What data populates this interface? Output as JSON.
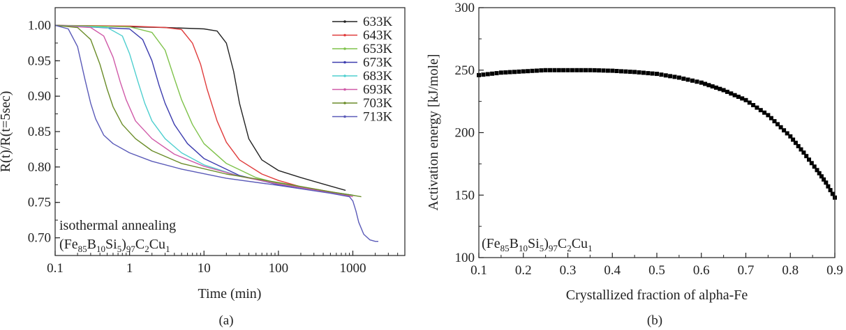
{
  "chart_data": [
    {
      "type": "line",
      "panel_caption": "(a)",
      "xlabel": "Time (min)",
      "ylabel": "R(t)/R(t=5sec)",
      "xscale": "log",
      "xlim": [
        0.1,
        5000
      ],
      "ylim": [
        0.675,
        1.025
      ],
      "xticks": [
        0.1,
        1,
        10,
        100,
        1000
      ],
      "xtick_labels": [
        "0.1",
        "1",
        "10",
        "100",
        "1000"
      ],
      "yticks": [
        0.7,
        0.75,
        0.8,
        0.85,
        0.9,
        0.95,
        1.0
      ],
      "ytick_labels": [
        "0.70",
        "0.75",
        "0.80",
        "0.85",
        "0.90",
        "0.95",
        "1.00"
      ],
      "legend_position": "top-right",
      "annotation": {
        "line1": "isothermal annealing",
        "formula": {
          "fe": "(Fe",
          "n85": "85",
          "b": "B",
          "n10": "10",
          "si": "Si",
          "n5": "5",
          "close": ")",
          "n97": "97",
          "c": "C",
          "n2": "2",
          "cu": "Cu",
          "n1": "1"
        }
      },
      "series": [
        {
          "name": "633K",
          "color": "#222222",
          "x": [
            0.1,
            0.5,
            1,
            3,
            10,
            15,
            20,
            25,
            30,
            40,
            60,
            100,
            200,
            400,
            800
          ],
          "y": [
            1.0,
            0.999,
            0.998,
            0.997,
            0.995,
            0.992,
            0.975,
            0.935,
            0.89,
            0.84,
            0.81,
            0.795,
            0.785,
            0.776,
            0.767
          ]
        },
        {
          "name": "643K",
          "color": "#e03c3c",
          "x": [
            0.1,
            1,
            3,
            5,
            7,
            9,
            11,
            15,
            20,
            30,
            60,
            100,
            200,
            500,
            900
          ],
          "y": [
            1.0,
            0.999,
            0.997,
            0.994,
            0.975,
            0.945,
            0.91,
            0.865,
            0.835,
            0.81,
            0.79,
            0.781,
            0.772,
            0.765,
            0.76
          ]
        },
        {
          "name": "653K",
          "color": "#7ec24a",
          "x": [
            0.1,
            1,
            2,
            3,
            4,
            5,
            7,
            10,
            20,
            50,
            100,
            300,
            1000
          ],
          "y": [
            1.0,
            0.998,
            0.99,
            0.965,
            0.925,
            0.895,
            0.86,
            0.833,
            0.805,
            0.785,
            0.777,
            0.768,
            0.76
          ]
        },
        {
          "name": "673K",
          "color": "#3c3cae",
          "x": [
            0.1,
            1,
            1.5,
            2,
            2.5,
            3,
            4,
            6,
            10,
            30,
            100,
            300,
            1000
          ],
          "y": [
            1.0,
            0.995,
            0.98,
            0.95,
            0.915,
            0.89,
            0.86,
            0.833,
            0.812,
            0.788,
            0.775,
            0.768,
            0.76
          ]
        },
        {
          "name": "683K",
          "color": "#4fcfcf",
          "x": [
            0.1,
            0.5,
            0.8,
            1.0,
            1.3,
            1.6,
            2,
            3,
            5,
            10,
            30,
            100,
            300,
            1000
          ],
          "y": [
            1.0,
            0.997,
            0.985,
            0.96,
            0.92,
            0.89,
            0.865,
            0.84,
            0.82,
            0.803,
            0.787,
            0.776,
            0.768,
            0.76
          ]
        },
        {
          "name": "693K",
          "color": "#d05aa8",
          "x": [
            0.1,
            0.3,
            0.45,
            0.6,
            0.75,
            0.9,
            1.2,
            2,
            4,
            10,
            30,
            100,
            300,
            1000
          ],
          "y": [
            1.0,
            0.997,
            0.985,
            0.955,
            0.92,
            0.895,
            0.865,
            0.84,
            0.818,
            0.801,
            0.787,
            0.776,
            0.768,
            0.758
          ]
        },
        {
          "name": "703K",
          "color": "#6a8c28",
          "x": [
            0.1,
            0.2,
            0.3,
            0.4,
            0.5,
            0.6,
            0.8,
            1.2,
            2,
            5,
            20,
            100,
            500,
            1000,
            1300
          ],
          "y": [
            1.0,
            0.997,
            0.98,
            0.945,
            0.91,
            0.885,
            0.86,
            0.84,
            0.823,
            0.805,
            0.79,
            0.778,
            0.765,
            0.76,
            0.758
          ]
        },
        {
          "name": "713K",
          "color": "#5a5ab8",
          "x": [
            0.1,
            0.15,
            0.2,
            0.25,
            0.3,
            0.35,
            0.45,
            0.6,
            1,
            2,
            5,
            20,
            100,
            500,
            900,
            1000,
            1100,
            1200,
            1400,
            1700,
            2000,
            2200
          ],
          "y": [
            1.0,
            0.995,
            0.97,
            0.925,
            0.89,
            0.868,
            0.845,
            0.833,
            0.82,
            0.808,
            0.797,
            0.784,
            0.774,
            0.763,
            0.758,
            0.752,
            0.738,
            0.722,
            0.705,
            0.697,
            0.695,
            0.695
          ]
        }
      ]
    },
    {
      "type": "scatter",
      "panel_caption": "(b)",
      "xlabel": "Crystallized fraction of alpha-Fe",
      "ylabel": "Activation energy [kJ/mole]",
      "xlim": [
        0.1,
        0.9
      ],
      "ylim": [
        100,
        300
      ],
      "xticks": [
        0.1,
        0.2,
        0.3,
        0.4,
        0.5,
        0.6,
        0.7,
        0.8,
        0.9
      ],
      "xtick_labels": [
        "0.1",
        "0.2",
        "0.3",
        "0.4",
        "0.5",
        "0.6",
        "0.7",
        "0.8",
        "0.9"
      ],
      "yticks": [
        100,
        150,
        200,
        250,
        300
      ],
      "ytick_labels": [
        "100",
        "150",
        "200",
        "250",
        "300"
      ],
      "annotation": {
        "formula": {
          "fe": "(Fe",
          "n85": "85",
          "b": "B",
          "n10": "10",
          "si": "Si",
          "n5": "5",
          "close": ")",
          "n97": "97",
          "c": "C",
          "n2": "2",
          "cu": "Cu",
          "n1": "1"
        }
      },
      "series": [
        {
          "marker": "square",
          "color": "#000000",
          "x": [
            0.1,
            0.15,
            0.2,
            0.25,
            0.3,
            0.35,
            0.4,
            0.45,
            0.5,
            0.55,
            0.6,
            0.65,
            0.7,
            0.75,
            0.8,
            0.83,
            0.86,
            0.88,
            0.9
          ],
          "y": [
            246,
            248,
            249,
            250,
            250,
            250,
            249.5,
            248.5,
            247,
            244,
            240,
            234,
            226,
            214,
            197,
            184,
            170,
            160,
            148
          ]
        }
      ]
    }
  ]
}
